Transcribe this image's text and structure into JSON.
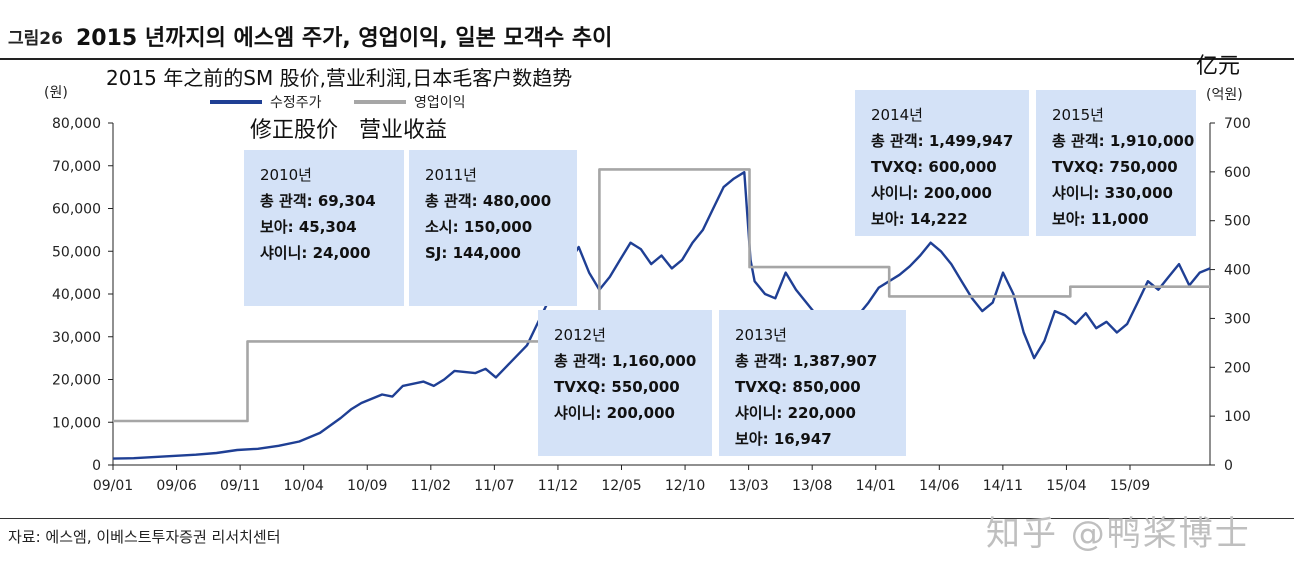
{
  "figure": {
    "label": "그림26",
    "title": "2015 년까지의 에스엠 주가, 영업이익, 일본 모객수 추이",
    "chinese_title": "2015 年之前的SM 股价,营业利润,日本毛客户数趋势",
    "chinese_right_unit": "亿元",
    "source": "자료: 에스엠, 이베스트투자증권 리서치센터",
    "watermark": "知乎 @鸭桨博士"
  },
  "chart_data": {
    "type": "line",
    "xlabel": "",
    "ylabel_left_unit": "(원)",
    "ylabel_right_unit": "(억원)",
    "x_tick_labels": [
      "09/01",
      "09/06",
      "09/11",
      "10/04",
      "10/09",
      "11/02",
      "11/07",
      "11/12",
      "12/05",
      "12/10",
      "13/03",
      "13/08",
      "14/01",
      "14/06",
      "14/11",
      "15/04",
      "15/09"
    ],
    "y_left": {
      "ylim": [
        0,
        80000
      ],
      "ticks": [
        0,
        10000,
        20000,
        30000,
        40000,
        50000,
        60000,
        70000,
        80000
      ],
      "tick_labels": [
        "0",
        "10,000",
        "20,000",
        "30,000",
        "40,000",
        "50,000",
        "60,000",
        "70,000",
        "80,000"
      ]
    },
    "y_right": {
      "ylim": [
        0,
        700
      ],
      "ticks": [
        0,
        100,
        200,
        300,
        400,
        500,
        600,
        700
      ],
      "tick_labels": [
        "0",
        "100",
        "200",
        "300",
        "400",
        "500",
        "600",
        "700"
      ]
    },
    "legend": [
      {
        "name": "수정주가",
        "cn": "修正股价",
        "color": "#1f3f94"
      },
      {
        "name": "영업이익",
        "cn": "营业收益",
        "color": "#a6a6a6"
      }
    ],
    "series": [
      {
        "name": "수정주가",
        "axis": "left",
        "color": "#1f3f94",
        "points": [
          [
            0,
            1500
          ],
          [
            2,
            1600
          ],
          [
            5,
            2000
          ],
          [
            8,
            2400
          ],
          [
            10,
            2800
          ],
          [
            12,
            3500
          ],
          [
            14,
            3800
          ],
          [
            16,
            4500
          ],
          [
            18,
            5500
          ],
          [
            20,
            7500
          ],
          [
            22,
            11000
          ],
          [
            23,
            13000
          ],
          [
            24,
            14500
          ],
          [
            26,
            16500
          ],
          [
            27,
            16000
          ],
          [
            28,
            18500
          ],
          [
            30,
            19500
          ],
          [
            31,
            18500
          ],
          [
            32,
            20000
          ],
          [
            33,
            22000
          ],
          [
            35,
            21500
          ],
          [
            36,
            22500
          ],
          [
            37,
            20500
          ],
          [
            38,
            23000
          ],
          [
            40,
            28000
          ],
          [
            41,
            33000
          ],
          [
            42,
            38000
          ],
          [
            43,
            42000
          ],
          [
            44,
            47000
          ],
          [
            45,
            51000
          ],
          [
            46,
            45000
          ],
          [
            47,
            41000
          ],
          [
            48,
            44000
          ],
          [
            49,
            48000
          ],
          [
            50,
            52000
          ],
          [
            51,
            50500
          ],
          [
            52,
            47000
          ],
          [
            53,
            49000
          ],
          [
            54,
            46000
          ],
          [
            55,
            48000
          ],
          [
            56,
            52000
          ],
          [
            57,
            55000
          ],
          [
            58,
            60000
          ],
          [
            59,
            65000
          ],
          [
            60,
            67000
          ],
          [
            61,
            68500
          ],
          [
            61.6,
            48000
          ],
          [
            62,
            43000
          ],
          [
            63,
            40000
          ],
          [
            64,
            39000
          ],
          [
            65,
            45000
          ],
          [
            66,
            41000
          ],
          [
            67,
            38000
          ],
          [
            68,
            35000
          ],
          [
            69,
            30000
          ],
          [
            70,
            27500
          ],
          [
            71,
            31000
          ],
          [
            72,
            35000
          ],
          [
            73,
            38000
          ],
          [
            74,
            41500
          ],
          [
            75,
            43000
          ],
          [
            76,
            44500
          ],
          [
            77,
            46500
          ],
          [
            78,
            49000
          ],
          [
            79,
            52000
          ],
          [
            80,
            50000
          ],
          [
            81,
            47000
          ],
          [
            82,
            43000
          ],
          [
            83,
            39000
          ],
          [
            84,
            36000
          ],
          [
            85,
            38000
          ],
          [
            86,
            45000
          ],
          [
            87,
            40000
          ],
          [
            88,
            31000
          ],
          [
            89,
            25000
          ],
          [
            90,
            29000
          ],
          [
            91,
            36000
          ],
          [
            92,
            35000
          ],
          [
            93,
            33000
          ],
          [
            94,
            35500
          ],
          [
            95,
            32000
          ],
          [
            96,
            33500
          ],
          [
            97,
            31000
          ],
          [
            98,
            33000
          ],
          [
            99,
            38000
          ],
          [
            100,
            43000
          ],
          [
            101,
            41000
          ],
          [
            102,
            44000
          ],
          [
            103,
            47000
          ],
          [
            104,
            42000
          ],
          [
            105,
            45000
          ],
          [
            106,
            46000
          ]
        ]
      },
      {
        "name": "영업이익",
        "axis": "right",
        "color": "#a6a6a6",
        "points": [
          [
            0,
            90
          ],
          [
            13,
            90
          ],
          [
            13,
            253
          ],
          [
            34,
            253
          ],
          [
            47,
            253
          ],
          [
            47,
            605
          ],
          [
            61.5,
            605
          ],
          [
            61.5,
            405
          ],
          [
            75,
            405
          ],
          [
            75,
            345
          ],
          [
            86,
            345
          ],
          [
            86,
            345
          ],
          [
            92.5,
            345
          ],
          [
            92.5,
            365
          ],
          [
            106,
            365
          ]
        ]
      }
    ],
    "annotations": [
      {
        "id": "2010",
        "lines": [
          "2010년",
          "총 관객: 69,304",
          "보아: 45,304",
          "샤이니: 24,000"
        ]
      },
      {
        "id": "2011",
        "lines": [
          "2011년",
          "총 관객: 480,000",
          "소시: 150,000",
          "SJ: 144,000"
        ]
      },
      {
        "id": "2012",
        "lines": [
          "2012년",
          "총 관객: 1,160,000",
          "TVXQ: 550,000",
          "샤이니: 200,000"
        ]
      },
      {
        "id": "2013",
        "lines": [
          "2013년",
          "총 관객: 1,387,907",
          "TVXQ: 850,000",
          "샤이니: 220,000",
          "보아: 16,947"
        ]
      },
      {
        "id": "2014",
        "lines": [
          "2014년",
          "총 관객: 1,499,947",
          "TVXQ: 600,000",
          "샤이니: 200,000",
          "보아: 14,222"
        ]
      },
      {
        "id": "2015",
        "lines": [
          "2015년",
          "총 관객: 1,910,000",
          "TVXQ: 750,000",
          "샤이니: 330,000",
          "보아: 11,000"
        ]
      }
    ]
  }
}
